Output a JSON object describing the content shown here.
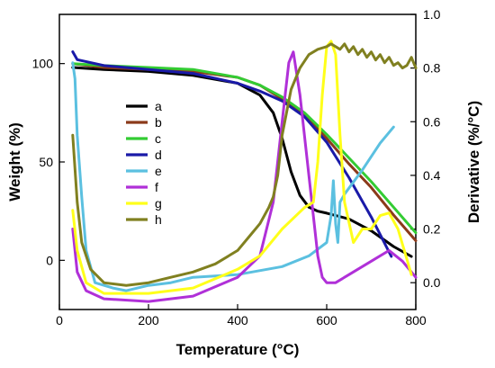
{
  "chart_data": {
    "type": "line",
    "title": "",
    "xlabel": "Temperature (°C)",
    "ylabel_left": "Weight (%)",
    "ylabel_right": "Derivative (%/°C)",
    "xlim": [
      0,
      800
    ],
    "ylim_left": [
      -25,
      125
    ],
    "ylim_right": [
      -0.1,
      1.0
    ],
    "x_ticks": [
      0,
      200,
      400,
      600,
      800
    ],
    "y_left_ticks": [
      0,
      50,
      100
    ],
    "y_right_ticks": [
      "0.0",
      "0.2",
      "0.4",
      "0.6",
      "0.8",
      "1.0"
    ],
    "grid": false,
    "legend_position": "center-left",
    "series": [
      {
        "name": "a",
        "color": "#000000",
        "axis": "left",
        "x": [
          30,
          100,
          200,
          300,
          400,
          450,
          480,
          500,
          520,
          540,
          560,
          580,
          600,
          650,
          700,
          750,
          790
        ],
        "y": [
          98,
          97,
          96,
          94,
          90,
          84,
          75,
          62,
          45,
          33,
          27,
          25,
          24,
          21,
          15,
          7,
          2
        ]
      },
      {
        "name": "b",
        "color": "#8b3a1a",
        "axis": "left",
        "x": [
          30,
          100,
          200,
          300,
          400,
          450,
          500,
          550,
          600,
          650,
          700,
          750,
          800
        ],
        "y": [
          100,
          98,
          97,
          96,
          93,
          89,
          82,
          74,
          62,
          49,
          37,
          23,
          10
        ]
      },
      {
        "name": "c",
        "color": "#33cc33",
        "axis": "left",
        "x": [
          30,
          100,
          200,
          300,
          400,
          450,
          500,
          550,
          600,
          650,
          700,
          750,
          800
        ],
        "y": [
          100,
          99,
          98,
          97,
          93,
          89,
          83,
          75,
          64,
          52,
          40,
          27,
          14
        ]
      },
      {
        "name": "d",
        "color": "#1a1aa8",
        "axis": "left",
        "x": [
          30,
          40,
          100,
          200,
          300,
          400,
          450,
          500,
          550,
          600,
          650,
          700,
          745
        ],
        "y": [
          106,
          102,
          99,
          97,
          95,
          90,
          86,
          81,
          73,
          60,
          42,
          22,
          2
        ]
      },
      {
        "name": "e",
        "color": "#5bc0e0",
        "axis": "right",
        "x": [
          30,
          35,
          40,
          50,
          60,
          80,
          120,
          150,
          200,
          250,
          300,
          400,
          500,
          560,
          600,
          610,
          615,
          620,
          625,
          630,
          640,
          680,
          720,
          750
        ],
        "y": [
          0.82,
          0.76,
          0.55,
          0.32,
          0.12,
          0.0,
          -0.02,
          -0.03,
          -0.01,
          0.0,
          0.02,
          0.03,
          0.06,
          0.1,
          0.15,
          0.25,
          0.38,
          0.22,
          0.15,
          0.3,
          0.33,
          0.42,
          0.52,
          0.58
        ]
      },
      {
        "name": "f",
        "color": "#b030d8",
        "axis": "right",
        "x": [
          30,
          40,
          60,
          100,
          200,
          300,
          400,
          450,
          480,
          500,
          515,
          525,
          540,
          560,
          580,
          590,
          600,
          620,
          650,
          700,
          740,
          770,
          800
        ],
        "y": [
          0.2,
          0.04,
          -0.03,
          -0.06,
          -0.07,
          -0.05,
          0.02,
          0.1,
          0.3,
          0.6,
          0.82,
          0.86,
          0.7,
          0.4,
          0.1,
          0.02,
          0.0,
          0.0,
          0.03,
          0.08,
          0.12,
          0.08,
          0.02
        ]
      },
      {
        "name": "g",
        "color": "#ffff1a",
        "axis": "right",
        "x": [
          30,
          40,
          60,
          100,
          200,
          300,
          400,
          450,
          500,
          550,
          570,
          580,
          590,
          600,
          610,
          620,
          630,
          640,
          660,
          680,
          700,
          720,
          740,
          760,
          790
        ],
        "y": [
          0.27,
          0.12,
          0.0,
          -0.04,
          -0.04,
          -0.02,
          0.05,
          0.1,
          0.2,
          0.28,
          0.3,
          0.45,
          0.7,
          0.88,
          0.9,
          0.85,
          0.55,
          0.3,
          0.15,
          0.2,
          0.2,
          0.25,
          0.26,
          0.2,
          0.03
        ]
      },
      {
        "name": "h",
        "color": "#808020",
        "axis": "right",
        "x": [
          30,
          40,
          50,
          70,
          100,
          150,
          200,
          250,
          300,
          350,
          400,
          430,
          450,
          470,
          480,
          490,
          500,
          520,
          540,
          560,
          580,
          600,
          610,
          620,
          630,
          640,
          650,
          660,
          670,
          680,
          690,
          700,
          710,
          720,
          730,
          740,
          750,
          760,
          770,
          780,
          790,
          800
        ],
        "y": [
          0.55,
          0.3,
          0.15,
          0.05,
          0.0,
          -0.01,
          0.0,
          0.02,
          0.04,
          0.07,
          0.12,
          0.18,
          0.22,
          0.28,
          0.32,
          0.4,
          0.55,
          0.72,
          0.8,
          0.85,
          0.87,
          0.88,
          0.89,
          0.88,
          0.87,
          0.89,
          0.86,
          0.88,
          0.85,
          0.87,
          0.84,
          0.86,
          0.83,
          0.85,
          0.82,
          0.84,
          0.81,
          0.82,
          0.8,
          0.81,
          0.84,
          0.8
        ]
      }
    ]
  }
}
